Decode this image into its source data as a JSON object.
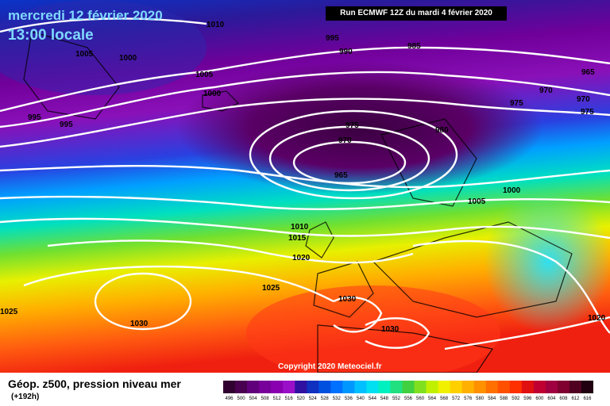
{
  "header": {
    "date": "mercredi 12 février 2020",
    "time": "13:00 locale",
    "run": "Run ECMWF 12Z du mardi 4 février 2020"
  },
  "footer": {
    "product": "Géop. z500, pression niveau mer",
    "lead": "(+192h)",
    "copyright": "Copyright 2020 Meteociel.fr"
  },
  "isobar_labels": [
    "1010",
    "1005",
    "1000",
    "1005",
    "1000",
    "995",
    "990",
    "985",
    "965",
    "970",
    "975",
    "970",
    "975",
    "980",
    "975",
    "970",
    "965",
    "995",
    "995",
    "1000",
    "1005",
    "1010",
    "1015",
    "1020",
    "1025",
    "1030",
    "1030",
    "1030",
    "1025",
    "1020"
  ],
  "legend": {
    "ticks": [
      "496",
      "500",
      "504",
      "508",
      "512",
      "516",
      "520",
      "524",
      "528",
      "532",
      "536",
      "540",
      "544",
      "548",
      "552",
      "556",
      "560",
      "564",
      "568",
      "572",
      "576",
      "580",
      "584",
      "588",
      "592",
      "596",
      "600",
      "604",
      "608",
      "612",
      "616"
    ],
    "colors": [
      "#300030",
      "#4a0050",
      "#60007a",
      "#78009a",
      "#8a00b0",
      "#9a10c8",
      "#3010a0",
      "#1030c0",
      "#0050e0",
      "#0070ff",
      "#0098ff",
      "#00c0ff",
      "#00e0f0",
      "#00f0c0",
      "#20e080",
      "#40d040",
      "#80e020",
      "#c0f000",
      "#f0f000",
      "#ffd000",
      "#ffb000",
      "#ff9000",
      "#ff7000",
      "#ff5000",
      "#ff3000",
      "#e01010",
      "#c00030",
      "#a00040",
      "#800030",
      "#500020",
      "#200010"
    ]
  }
}
